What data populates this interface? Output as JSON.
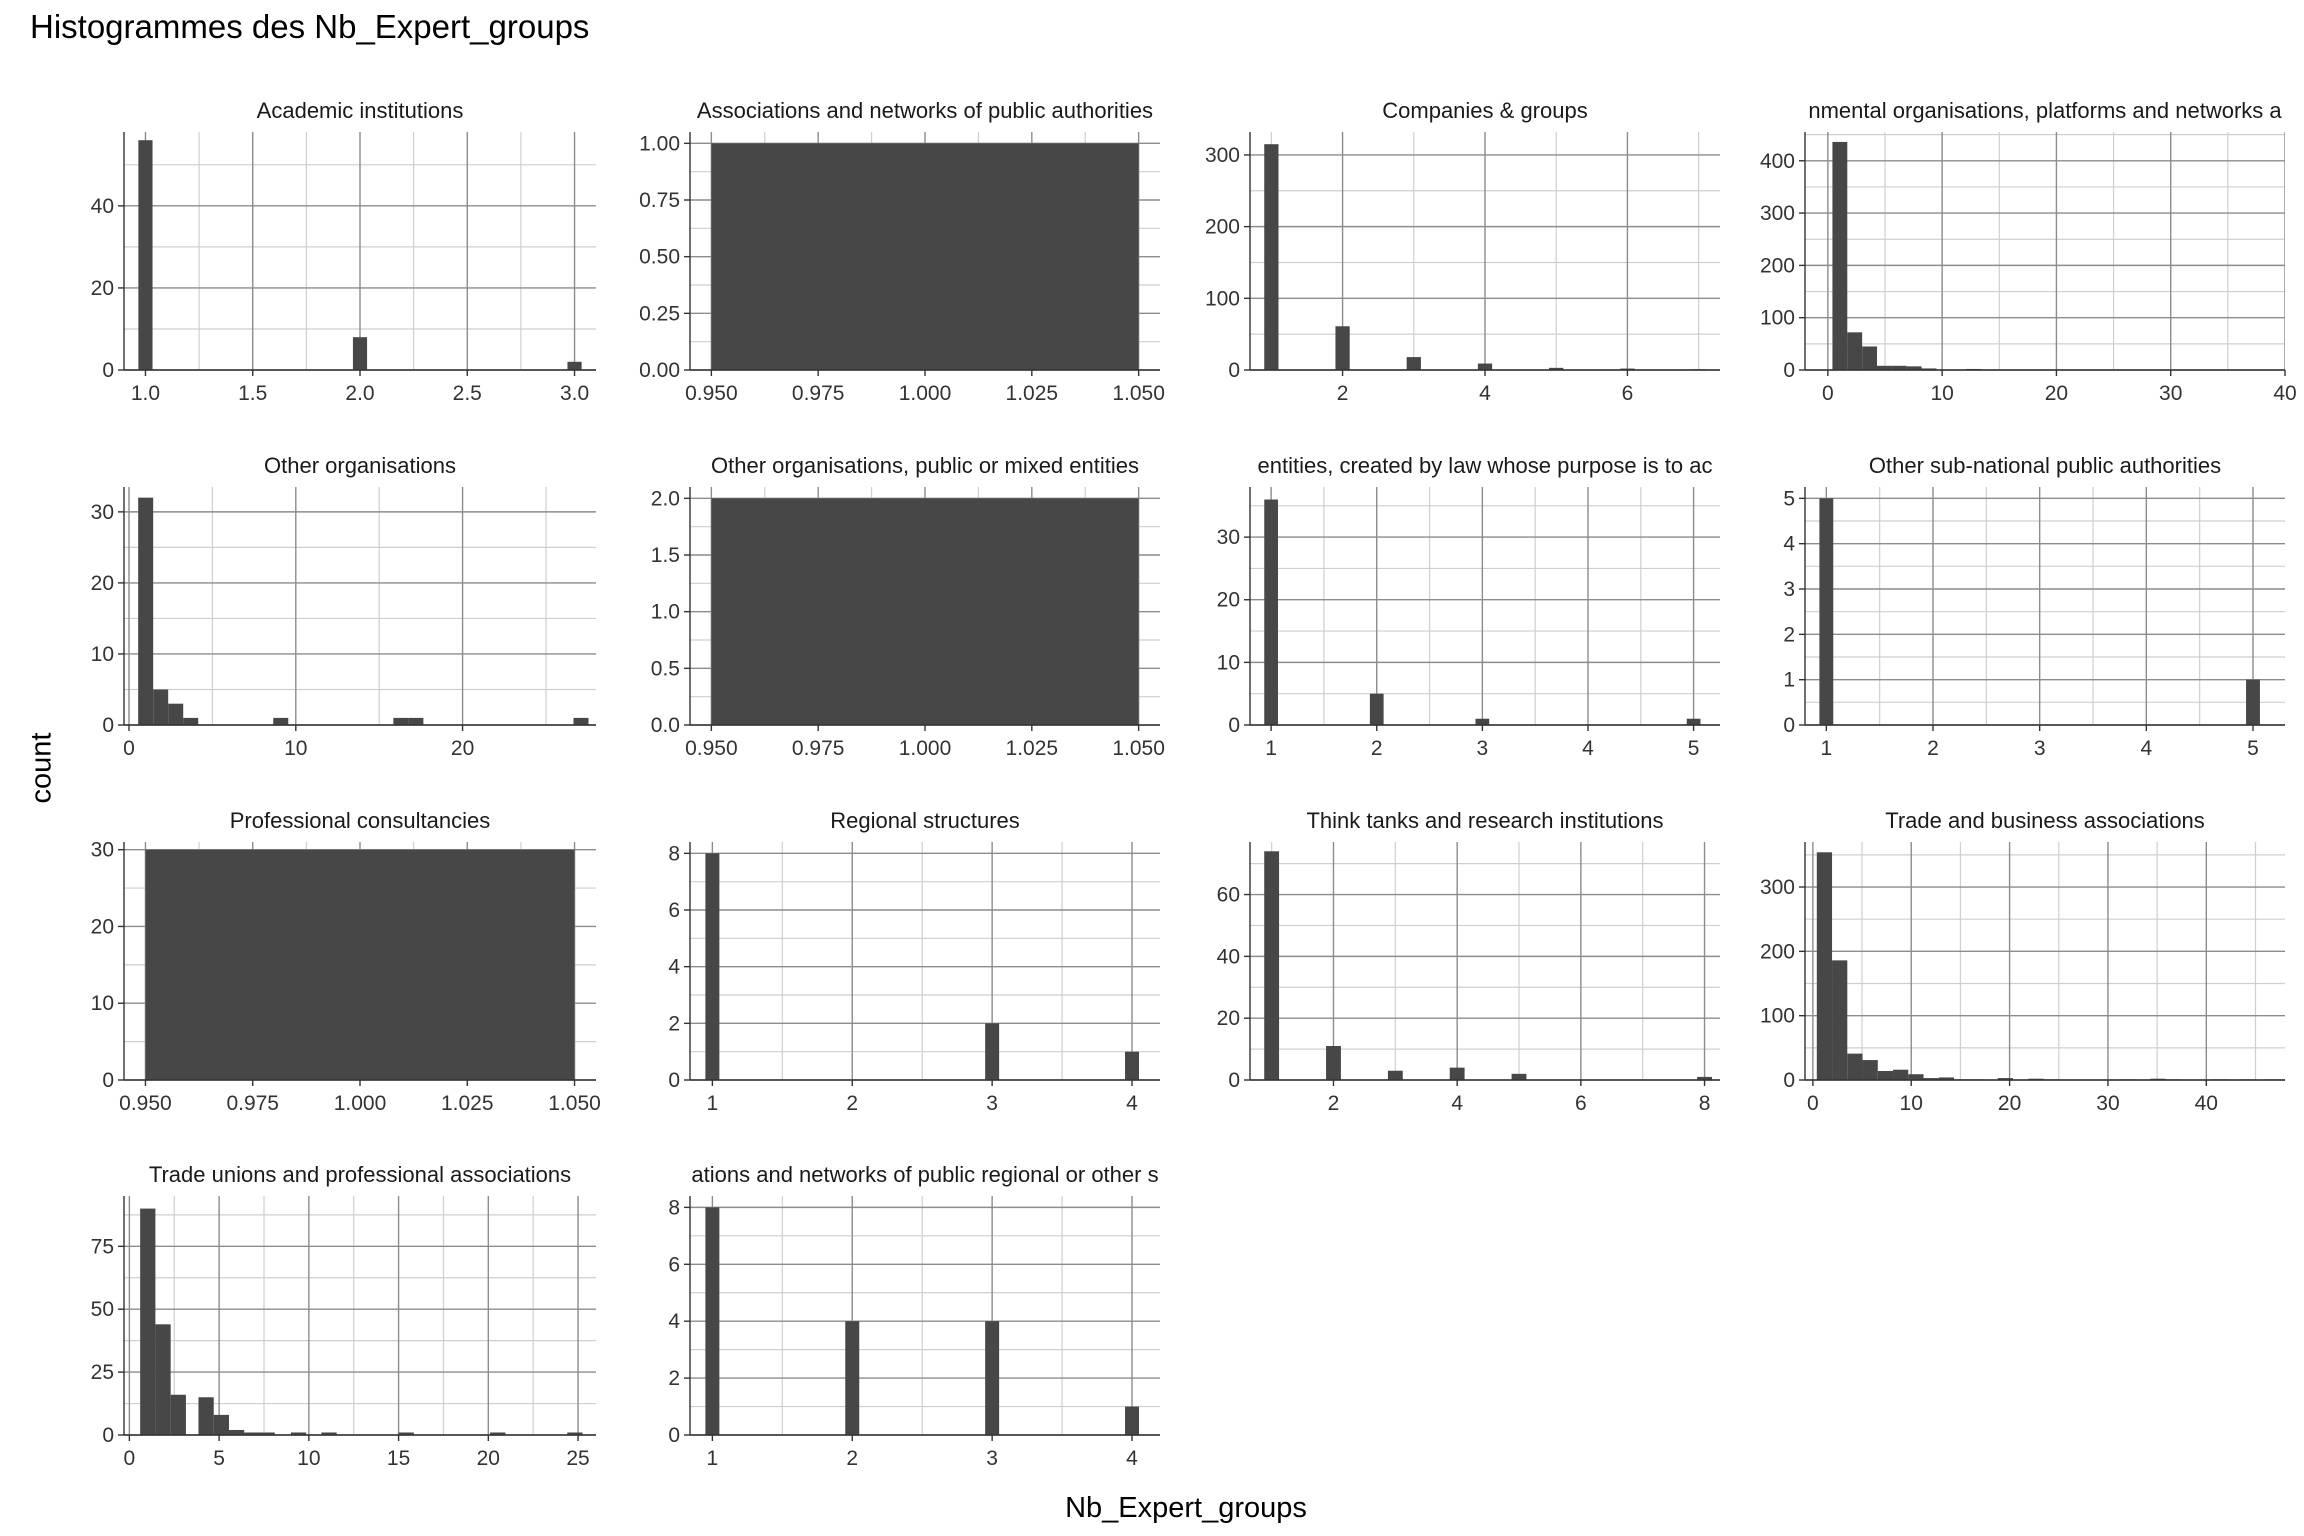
{
  "title": "Histogrammes des Nb_Expert_groups",
  "xlabel": "Nb_Expert_groups",
  "ylabel": "count",
  "colors": {
    "bar": "#474747",
    "grid_major": "#8c8c8c",
    "grid_minor": "#cfcfcf",
    "axis": "#333333"
  },
  "chart_data": [
    {
      "type": "bar",
      "panel_title": "Academic institutions",
      "xlim": [
        0.9,
        3.1
      ],
      "ylim": [
        0,
        58
      ],
      "xticks": [
        1.0,
        1.5,
        2.0,
        2.5,
        3.0
      ],
      "xtick_labels": [
        "1.0",
        "1.5",
        "2.0",
        "2.5",
        "3.0"
      ],
      "yticks": [
        0,
        20,
        40
      ],
      "ytick_labels": [
        "0",
        "20",
        "40"
      ],
      "bins": [
        [
          0.967,
          1.033,
          56
        ],
        [
          1.967,
          2.033,
          8
        ],
        [
          2.967,
          3.033,
          2
        ]
      ]
    },
    {
      "type": "bar",
      "panel_title": "Associations and networks of public authorities",
      "xlim": [
        0.945,
        1.055
      ],
      "ylim": [
        0,
        1.05
      ],
      "xticks": [
        0.95,
        0.975,
        1.0,
        1.025,
        1.05
      ],
      "xtick_labels": [
        "0.950",
        "0.975",
        "1.000",
        "1.025",
        "1.050"
      ],
      "yticks": [
        0,
        0.25,
        0.5,
        0.75,
        1.0
      ],
      "ytick_labels": [
        "0.00",
        "0.25",
        "0.50",
        "0.75",
        "1.00"
      ],
      "bins": [
        [
          0.95,
          1.05,
          1
        ]
      ]
    },
    {
      "type": "bar",
      "panel_title": "Companies & groups",
      "xlim": [
        0.7,
        7.3
      ],
      "ylim": [
        0,
        332
      ],
      "xticks": [
        2,
        4,
        6
      ],
      "xtick_labels": [
        "2",
        "4",
        "6"
      ],
      "yticks": [
        0,
        100,
        200,
        300
      ],
      "ytick_labels": [
        "0",
        "100",
        "200",
        "300"
      ],
      "bins": [
        [
          0.9,
          1.1,
          315
        ],
        [
          1.9,
          2.1,
          61
        ],
        [
          2.9,
          3.1,
          18
        ],
        [
          3.9,
          4.1,
          9
        ],
        [
          4.9,
          5.1,
          3
        ],
        [
          5.9,
          6.1,
          2
        ],
        [
          6.9,
          7.1,
          1
        ]
      ]
    },
    {
      "type": "bar",
      "panel_title": "nmental organisations, platforms and networks a",
      "xlim": [
        -2,
        40
      ],
      "ylim": [
        0,
        455
      ],
      "xticks": [
        0,
        10,
        20,
        30,
        40
      ],
      "xtick_labels": [
        "0",
        "10",
        "20",
        "30",
        "40"
      ],
      "yticks": [
        0,
        100,
        200,
        300,
        400
      ],
      "ytick_labels": [
        "0",
        "100",
        "200",
        "300",
        "400"
      ],
      "bins": [
        [
          0.4,
          1.7,
          436
        ],
        [
          1.7,
          3.0,
          72
        ],
        [
          3.0,
          4.3,
          45
        ],
        [
          4.3,
          5.6,
          8
        ],
        [
          5.6,
          6.9,
          8
        ],
        [
          6.9,
          8.2,
          7
        ],
        [
          8.2,
          9.5,
          3
        ],
        [
          9.5,
          10.8,
          1
        ],
        [
          12.1,
          13.4,
          2
        ],
        [
          13.4,
          14.7,
          1
        ],
        [
          16.0,
          17.3,
          1
        ],
        [
          19.9,
          21.2,
          1
        ],
        [
          35.5,
          36.8,
          1
        ],
        [
          37.4,
          38.7,
          1
        ]
      ]
    },
    {
      "type": "bar",
      "panel_title": "Other organisations",
      "xlim": [
        -0.3,
        28
      ],
      "ylim": [
        0,
        33.5
      ],
      "xticks": [
        0,
        10,
        20
      ],
      "xtick_labels": [
        "0",
        "10",
        "20"
      ],
      "yticks": [
        0,
        10,
        20,
        30
      ],
      "ytick_labels": [
        "0",
        "10",
        "20",
        "30"
      ],
      "bins": [
        [
          0.55,
          1.45,
          32
        ],
        [
          1.45,
          2.35,
          5
        ],
        [
          2.35,
          3.25,
          3
        ],
        [
          3.25,
          4.15,
          1
        ],
        [
          8.65,
          9.55,
          1
        ],
        [
          15.85,
          16.75,
          1
        ],
        [
          16.75,
          17.65,
          1
        ],
        [
          26.65,
          27.55,
          1
        ]
      ]
    },
    {
      "type": "bar",
      "panel_title": "Other organisations, public or mixed entities",
      "xlim": [
        0.945,
        1.055
      ],
      "ylim": [
        0,
        2.1
      ],
      "xticks": [
        0.95,
        0.975,
        1.0,
        1.025,
        1.05
      ],
      "xtick_labels": [
        "0.950",
        "0.975",
        "1.000",
        "1.025",
        "1.050"
      ],
      "yticks": [
        0,
        0.5,
        1.0,
        1.5,
        2.0
      ],
      "ytick_labels": [
        "0.0",
        "0.5",
        "1.0",
        "1.5",
        "2.0"
      ],
      "bins": [
        [
          0.95,
          1.05,
          2
        ]
      ]
    },
    {
      "type": "bar",
      "panel_title": "entities, created by law whose purpose is to ac",
      "xlim": [
        0.8,
        5.25
      ],
      "ylim": [
        0,
        38
      ],
      "xticks": [
        1,
        2,
        3,
        4,
        5
      ],
      "xtick_labels": [
        "1",
        "2",
        "3",
        "4",
        "5"
      ],
      "yticks": [
        0,
        10,
        20,
        30
      ],
      "ytick_labels": [
        "0",
        "10",
        "20",
        "30"
      ],
      "bins": [
        [
          0.935,
          1.065,
          36
        ],
        [
          1.935,
          2.065,
          5
        ],
        [
          2.935,
          3.065,
          1
        ],
        [
          4.935,
          5.065,
          1
        ]
      ]
    },
    {
      "type": "bar",
      "panel_title": "Other sub-national public authorities",
      "xlim": [
        0.8,
        5.3
      ],
      "ylim": [
        0,
        5.25
      ],
      "xticks": [
        1,
        2,
        3,
        4,
        5
      ],
      "xtick_labels": [
        "1",
        "2",
        "3",
        "4",
        "5"
      ],
      "yticks": [
        0,
        1,
        2,
        3,
        4,
        5
      ],
      "ytick_labels": [
        "0",
        "1",
        "2",
        "3",
        "4",
        "5"
      ],
      "bins": [
        [
          0.935,
          1.065,
          5
        ],
        [
          4.935,
          5.065,
          1
        ]
      ]
    },
    {
      "type": "bar",
      "panel_title": "Professional consultancies",
      "xlim": [
        0.945,
        1.055
      ],
      "ylim": [
        0,
        31
      ],
      "xticks": [
        0.95,
        0.975,
        1.0,
        1.025,
        1.05
      ],
      "xtick_labels": [
        "0.950",
        "0.975",
        "1.000",
        "1.025",
        "1.050"
      ],
      "yticks": [
        0,
        10,
        20,
        30
      ],
      "ytick_labels": [
        "0",
        "10",
        "20",
        "30"
      ],
      "bins": [
        [
          0.95,
          1.05,
          30
        ]
      ]
    },
    {
      "type": "bar",
      "panel_title": "Regional structures",
      "xlim": [
        0.84,
        4.2
      ],
      "ylim": [
        0,
        8.4
      ],
      "xticks": [
        1,
        2,
        3,
        4
      ],
      "xtick_labels": [
        "1",
        "2",
        "3",
        "4"
      ],
      "yticks": [
        0,
        2,
        4,
        6,
        8
      ],
      "ytick_labels": [
        "0",
        "2",
        "4",
        "6",
        "8"
      ],
      "bins": [
        [
          0.95,
          1.05,
          8
        ],
        [
          2.95,
          3.05,
          2
        ],
        [
          3.95,
          4.05,
          1
        ]
      ]
    },
    {
      "type": "bar",
      "panel_title": "Think tanks and research institutions",
      "xlim": [
        0.65,
        8.25
      ],
      "ylim": [
        0,
        77
      ],
      "xticks": [
        2,
        4,
        6,
        8
      ],
      "xtick_labels": [
        "2",
        "4",
        "6",
        "8"
      ],
      "yticks": [
        0,
        20,
        40,
        60
      ],
      "ytick_labels": [
        "0",
        "20",
        "40",
        "60"
      ],
      "bins": [
        [
          0.88,
          1.12,
          74
        ],
        [
          1.88,
          2.12,
          11
        ],
        [
          2.88,
          3.12,
          3
        ],
        [
          3.88,
          4.12,
          4
        ],
        [
          4.88,
          5.12,
          2
        ],
        [
          7.88,
          8.12,
          1
        ]
      ]
    },
    {
      "type": "bar",
      "panel_title": "Trade and business associations",
      "xlim": [
        -0.8,
        48
      ],
      "ylim": [
        0,
        370
      ],
      "xticks": [
        0,
        10,
        20,
        30,
        40
      ],
      "xtick_labels": [
        "0",
        "10",
        "20",
        "30",
        "40"
      ],
      "yticks": [
        0,
        100,
        200,
        300
      ],
      "ytick_labels": [
        "0",
        "100",
        "200",
        "300"
      ],
      "bins": [
        [
          0.4,
          1.95,
          354
        ],
        [
          1.95,
          3.5,
          186
        ],
        [
          3.5,
          5.05,
          41
        ],
        [
          5.05,
          6.6,
          31
        ],
        [
          6.6,
          8.15,
          14
        ],
        [
          8.15,
          9.7,
          16
        ],
        [
          9.7,
          11.25,
          9
        ],
        [
          11.25,
          12.8,
          3
        ],
        [
          12.8,
          14.35,
          4
        ],
        [
          14.35,
          15.9,
          1
        ],
        [
          15.9,
          17.45,
          1
        ],
        [
          18.8,
          20.35,
          3
        ],
        [
          21.9,
          23.45,
          2
        ],
        [
          23.45,
          25.0,
          1
        ],
        [
          31.2,
          32.75,
          1
        ],
        [
          34.3,
          35.85,
          2
        ],
        [
          35.85,
          37.4,
          1
        ],
        [
          40.5,
          42.05,
          1
        ],
        [
          43.6,
          45.15,
          1
        ],
        [
          46.0,
          47.4,
          1
        ]
      ]
    },
    {
      "type": "bar",
      "panel_title": "Trade unions and professional associations",
      "xlim": [
        -0.3,
        26
      ],
      "ylim": [
        0,
        95
      ],
      "xticks": [
        0,
        5,
        10,
        15,
        20,
        25
      ],
      "xtick_labels": [
        "0",
        "5",
        "10",
        "15",
        "20",
        "25"
      ],
      "yticks": [
        0,
        25,
        50,
        75
      ],
      "ytick_labels": [
        "0",
        "25",
        "50",
        "75"
      ],
      "bins": [
        [
          0.6,
          1.45,
          90
        ],
        [
          1.45,
          2.3,
          44
        ],
        [
          2.3,
          3.15,
          16
        ],
        [
          3.85,
          4.7,
          15
        ],
        [
          4.7,
          5.55,
          8
        ],
        [
          5.55,
          6.4,
          2
        ],
        [
          6.4,
          7.25,
          1
        ],
        [
          7.25,
          8.1,
          1
        ],
        [
          9.0,
          9.85,
          1
        ],
        [
          10.7,
          11.55,
          1
        ],
        [
          15.0,
          15.85,
          1
        ],
        [
          20.1,
          20.95,
          1
        ],
        [
          24.4,
          25.25,
          1
        ]
      ]
    },
    {
      "type": "bar",
      "panel_title": "ations and networks of public regional or other s",
      "xlim": [
        0.84,
        4.2
      ],
      "ylim": [
        0,
        8.4
      ],
      "xticks": [
        1,
        2,
        3,
        4
      ],
      "xtick_labels": [
        "1",
        "2",
        "3",
        "4"
      ],
      "yticks": [
        0,
        2,
        4,
        6,
        8
      ],
      "ytick_labels": [
        "0",
        "2",
        "4",
        "6",
        "8"
      ],
      "bins": [
        [
          0.95,
          1.05,
          8
        ],
        [
          1.95,
          2.05,
          4
        ],
        [
          2.95,
          3.05,
          4
        ],
        [
          3.95,
          4.05,
          1
        ]
      ]
    }
  ]
}
